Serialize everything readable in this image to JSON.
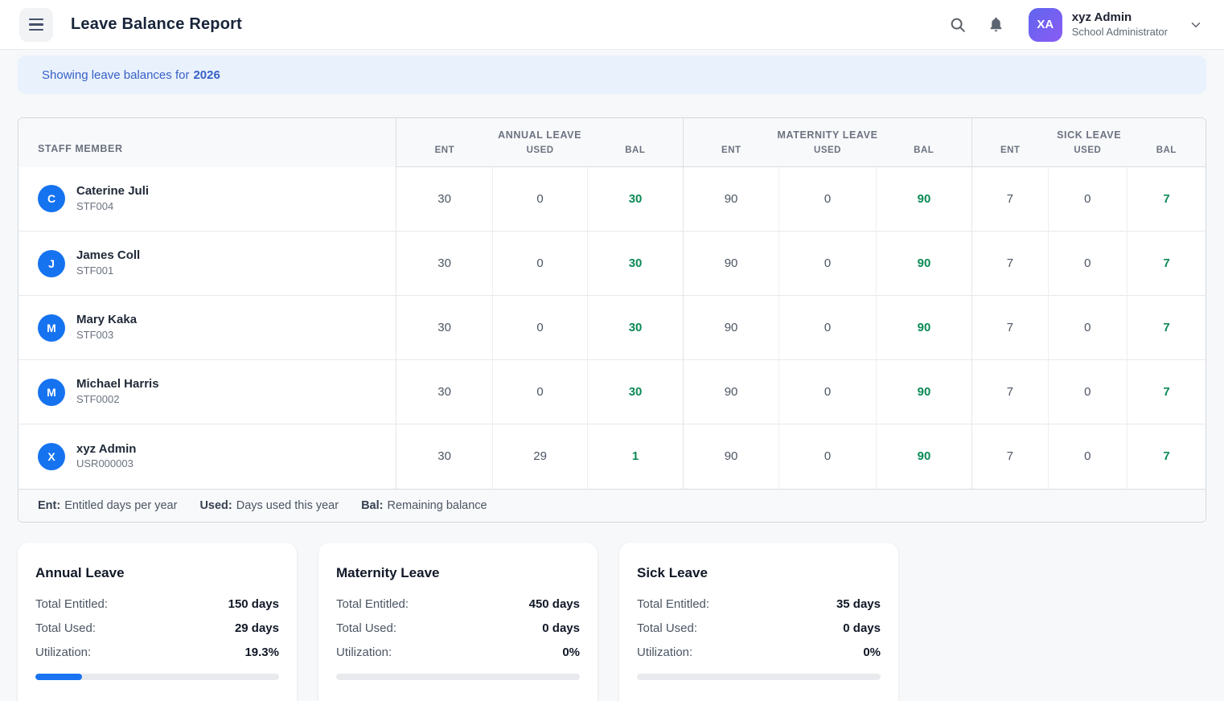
{
  "header": {
    "title": "Leave Balance Report",
    "user": {
      "initials": "XA",
      "name": "xyz Admin",
      "role": "School Administrator"
    }
  },
  "banner": {
    "prefix": "Showing leave balances for",
    "year": "2026"
  },
  "table": {
    "staff_header": "STAFF MEMBER",
    "groups": {
      "annual": "ANNUAL LEAVE",
      "maternity": "MATERNITY LEAVE",
      "sick": "SICK LEAVE"
    },
    "sub": {
      "ent": "ENT",
      "used": "USED",
      "bal": "BAL"
    },
    "rows": [
      {
        "initial": "C",
        "name": "Caterine Juli",
        "id": "STF004",
        "annual": {
          "ent": "30",
          "used": "0",
          "bal": "30"
        },
        "maternity": {
          "ent": "90",
          "used": "0",
          "bal": "90"
        },
        "sick": {
          "ent": "7",
          "used": "0",
          "bal": "7"
        }
      },
      {
        "initial": "J",
        "name": "James Coll",
        "id": "STF001",
        "annual": {
          "ent": "30",
          "used": "0",
          "bal": "30"
        },
        "maternity": {
          "ent": "90",
          "used": "0",
          "bal": "90"
        },
        "sick": {
          "ent": "7",
          "used": "0",
          "bal": "7"
        }
      },
      {
        "initial": "M",
        "name": "Mary Kaka",
        "id": "STF003",
        "annual": {
          "ent": "30",
          "used": "0",
          "bal": "30"
        },
        "maternity": {
          "ent": "90",
          "used": "0",
          "bal": "90"
        },
        "sick": {
          "ent": "7",
          "used": "0",
          "bal": "7"
        }
      },
      {
        "initial": "M",
        "name": "Michael Harris",
        "id": "STF0002",
        "annual": {
          "ent": "30",
          "used": "0",
          "bal": "30"
        },
        "maternity": {
          "ent": "90",
          "used": "0",
          "bal": "90"
        },
        "sick": {
          "ent": "7",
          "used": "0",
          "bal": "7"
        }
      },
      {
        "initial": "X",
        "name": "xyz Admin",
        "id": "USR000003",
        "annual": {
          "ent": "30",
          "used": "29",
          "bal": "1"
        },
        "maternity": {
          "ent": "90",
          "used": "0",
          "bal": "90"
        },
        "sick": {
          "ent": "7",
          "used": "0",
          "bal": "7"
        }
      }
    ],
    "legend": [
      {
        "term": "Ent:",
        "desc": "Entitled days per year"
      },
      {
        "term": "Used:",
        "desc": "Days used this year"
      },
      {
        "term": "Bal:",
        "desc": "Remaining balance"
      }
    ]
  },
  "cards": [
    {
      "title": "Annual Leave",
      "entitled_label": "Total Entitled:",
      "entitled": "150 days",
      "used_label": "Total Used:",
      "used": "29 days",
      "util_label": "Utilization:",
      "utilization": "19.3%",
      "progress_pct": 19.3
    },
    {
      "title": "Maternity Leave",
      "entitled_label": "Total Entitled:",
      "entitled": "450 days",
      "used_label": "Total Used:",
      "used": "0 days",
      "util_label": "Utilization:",
      "utilization": "0%",
      "progress_pct": 0
    },
    {
      "title": "Sick Leave",
      "entitled_label": "Total Entitled:",
      "entitled": "35 days",
      "used_label": "Total Used:",
      "used": "0 days",
      "util_label": "Utilization:",
      "utilization": "0%",
      "progress_pct": 0
    }
  ],
  "colors": {
    "accent_blue": "#1a73f0",
    "avatar_blue": "#1673f0",
    "balance_green": "#0b8a55",
    "banner_bg": "#e9f1fd",
    "banner_text": "#3761c6",
    "user_avatar_gradient": [
      "#6065ee",
      "#8a5cf5"
    ]
  },
  "icons": {
    "menu": "hamburger-menu-icon",
    "search": "search-icon",
    "bell": "notifications-bell-icon",
    "chevron": "chevron-down-icon"
  }
}
